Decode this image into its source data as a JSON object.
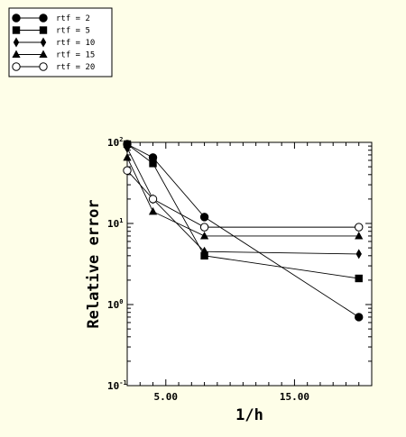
{
  "chart_data": {
    "type": "line",
    "title": "",
    "xlabel": "1/h",
    "ylabel": "Relative error",
    "xlim": [
      2,
      21
    ],
    "ylim": [
      0.1,
      100
    ],
    "yscale": "log",
    "xticks": [
      5,
      15
    ],
    "xtick_labels": [
      "5.00",
      "15.00"
    ],
    "yticks": [
      0.1,
      1,
      10,
      100
    ],
    "ytick_labels": [
      {
        "base": "10",
        "exp": "-1"
      },
      {
        "base": "10",
        "exp": "0"
      },
      {
        "base": "10",
        "exp": "1"
      },
      {
        "base": "10",
        "exp": "2"
      }
    ],
    "grid": false,
    "legend_position": "top-left, outside plot",
    "series": [
      {
        "name": "rtf = 2",
        "marker": "filled-circle",
        "x": [
          2,
          4,
          8,
          20
        ],
        "y": [
          95,
          65,
          12,
          0.7
        ]
      },
      {
        "name": "rtf = 5",
        "marker": "filled-square",
        "x": [
          2,
          4,
          8,
          20
        ],
        "y": [
          95,
          55,
          4.0,
          2.1
        ]
      },
      {
        "name": "rtf = 10",
        "marker": "filled-diamond",
        "x": [
          2,
          4,
          8,
          20
        ],
        "y": [
          85,
          20,
          4.5,
          4.2
        ]
      },
      {
        "name": "rtf = 15",
        "marker": "filled-triangle",
        "x": [
          2,
          4,
          8,
          20
        ],
        "y": [
          65,
          14,
          7.0,
          7.0
        ]
      },
      {
        "name": "rtf = 20",
        "marker": "open-circle",
        "x": [
          2,
          4,
          8,
          20
        ],
        "y": [
          45,
          20,
          9.0,
          9.0
        ]
      }
    ]
  }
}
